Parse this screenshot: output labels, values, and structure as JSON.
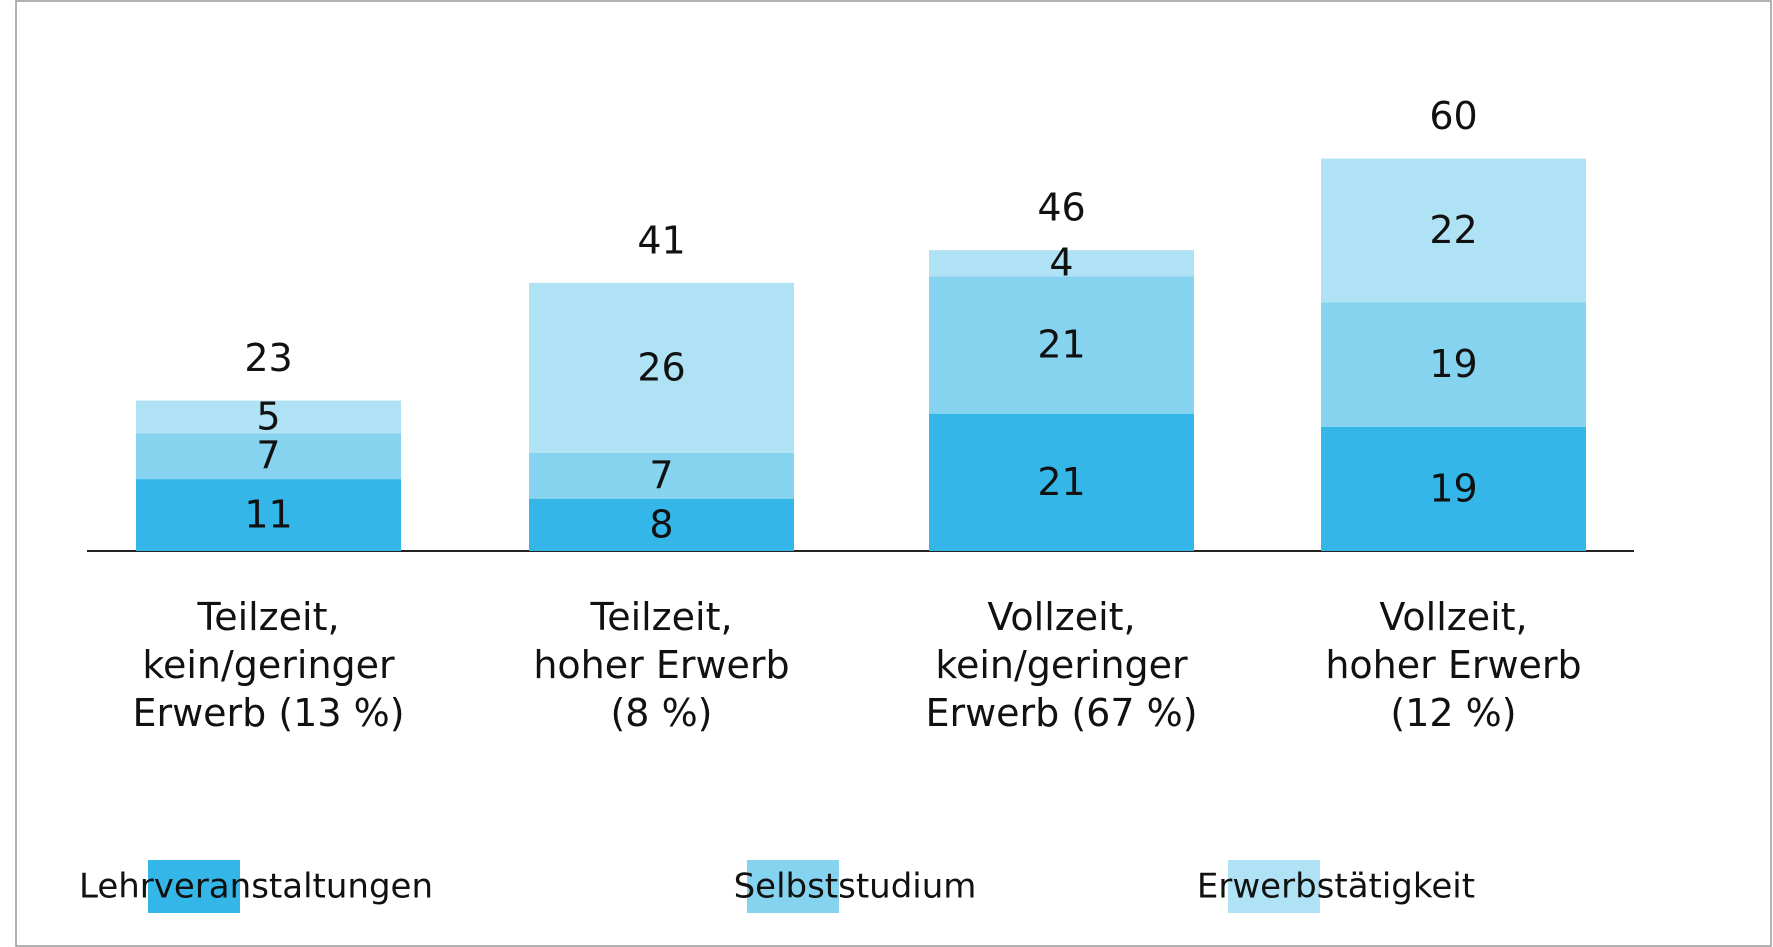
{
  "chart_data": {
    "type": "stacked-bar",
    "categories": [
      "Teilzeit,\nkein/geringer\nErwerb (13 %)",
      "Teilzeit,\nhoher Erwerb\n(8 %)",
      "Vollzeit,\nkein/geringer\nErwerb (67 %)",
      "Vollzeit,\nhoher Erwerb\n(12 %)"
    ],
    "series": [
      {
        "name": "Lehrveranstaltungen",
        "color": "#35b6e9",
        "values": [
          11,
          8,
          21,
          19
        ]
      },
      {
        "name": "Selbststudium",
        "color": "#86d3f0",
        "values": [
          7,
          7,
          21,
          19
        ]
      },
      {
        "name": "Erwerbstätigkeit",
        "color": "#b0e2f5",
        "values": [
          5,
          26,
          4,
          22
        ]
      }
    ],
    "totals": [
      23,
      41,
      46,
      60
    ],
    "legend": "bottom"
  }
}
